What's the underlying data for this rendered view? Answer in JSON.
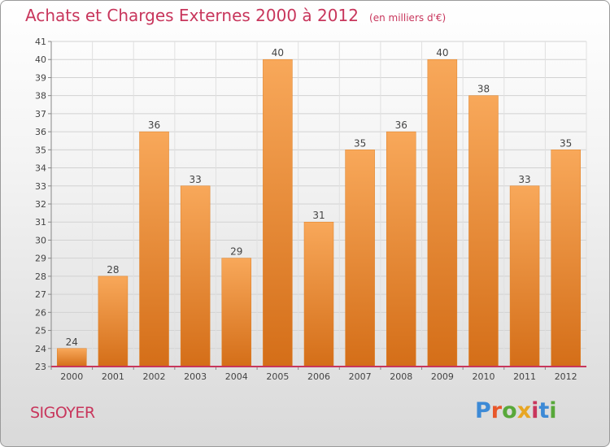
{
  "header": {
    "title": "Achats et Charges Externes 2000 à 2012",
    "subtitle": "(en milliers d'€)"
  },
  "footer": {
    "commune": "SIGOYER",
    "logo_text": "Proxiti",
    "logo_colors": [
      "#3d8ad6",
      "#e8572a",
      "#58a83a",
      "#e8a623",
      "#c8365c",
      "#3d8ad6",
      "#58a83a"
    ]
  },
  "colors": {
    "bar": "#f08a28",
    "bar_light": "#f8a85a",
    "bar_dark": "#d8701c",
    "title": "#c8365c",
    "baseline": "#c8365c"
  },
  "chart_data": {
    "type": "bar",
    "categories": [
      "2000",
      "2001",
      "2002",
      "2003",
      "2004",
      "2005",
      "2006",
      "2007",
      "2008",
      "2009",
      "2010",
      "2011",
      "2012"
    ],
    "values": [
      24,
      28,
      36,
      33,
      29,
      40,
      31,
      35,
      36,
      40,
      38,
      33,
      35
    ],
    "ylim": [
      23,
      41
    ],
    "yticks": [
      23,
      24,
      25,
      26,
      27,
      28,
      29,
      30,
      31,
      32,
      33,
      34,
      35,
      36,
      37,
      38,
      39,
      40,
      41
    ],
    "grid": true,
    "legend": "none"
  }
}
